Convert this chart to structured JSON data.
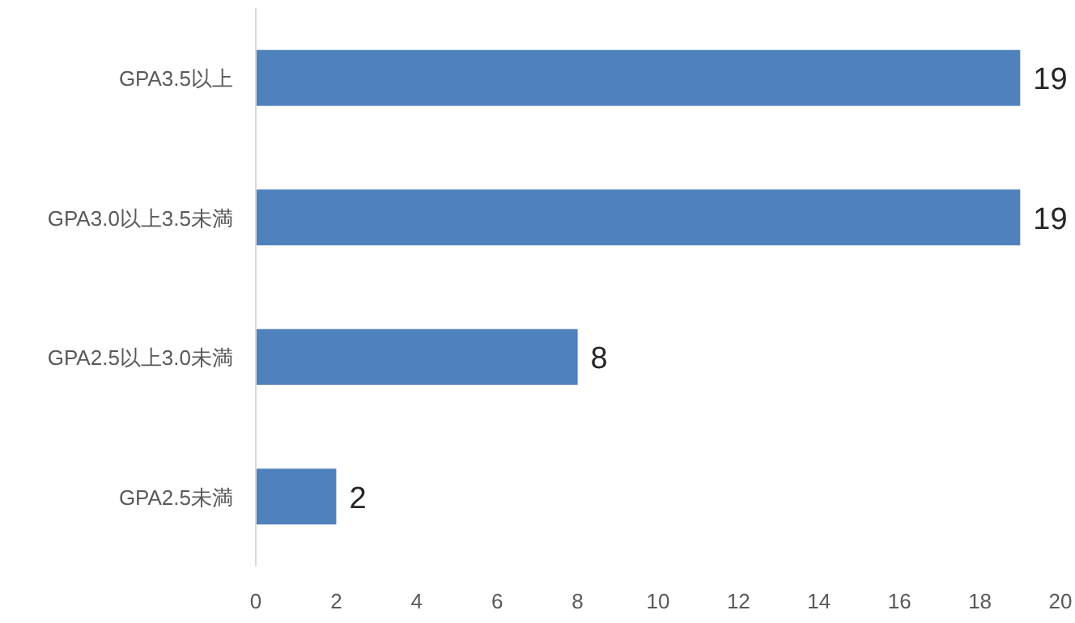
{
  "chart_data": {
    "type": "bar",
    "orientation": "horizontal",
    "categories": [
      "GPA3.5以上",
      "GPA3.0以上3.5未満",
      "GPA2.5以上3.0未満",
      "GPA2.5未満"
    ],
    "values": [
      19,
      19,
      8,
      2
    ],
    "color": "#4f81bd",
    "xlim": [
      0,
      20
    ],
    "xticks": [
      0,
      2,
      4,
      6,
      8,
      10,
      12,
      14,
      16,
      18,
      20
    ],
    "data_labels": true
  }
}
